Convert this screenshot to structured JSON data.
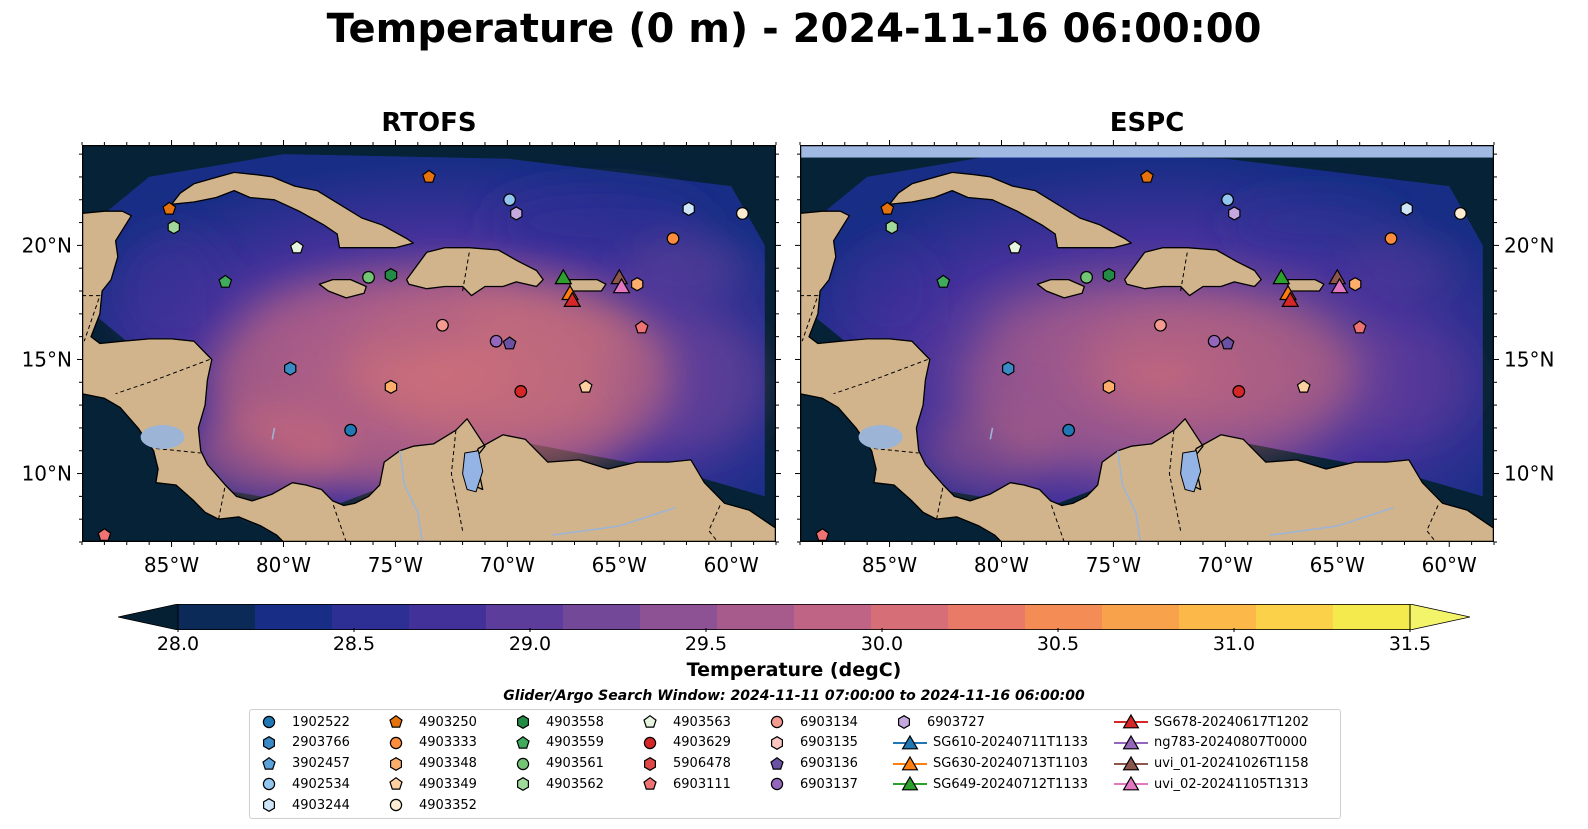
{
  "title": "Temperature (0 m) - 2024-11-16 06:00:00",
  "panels": [
    {
      "title": "RTOFS",
      "show_left_labels": true,
      "show_right_labels": false,
      "nodata_band": false
    },
    {
      "title": "ESPC",
      "show_left_labels": false,
      "show_right_labels": true,
      "nodata_band": true
    }
  ],
  "lat_labels": [
    "20°N",
    "15°N",
    "10°N"
  ],
  "lat_values": [
    20,
    15,
    10
  ],
  "lon_labels": [
    "85°W",
    "80°W",
    "75°W",
    "70°W",
    "65°W",
    "60°W"
  ],
  "lon_values": [
    -85,
    -80,
    -75,
    -70,
    -65,
    -60
  ],
  "extent": {
    "lon": [
      -89,
      -58
    ],
    "lat": [
      7,
      24.4
    ]
  },
  "colorbar": {
    "label": "Temperature (degC)",
    "ticks": [
      "28.0",
      "28.5",
      "29.0",
      "29.5",
      "30.0",
      "30.5",
      "31.0",
      "31.5"
    ],
    "min": 28.0,
    "max": 31.5,
    "colors": [
      "#0b2a57",
      "#182e86",
      "#2d2f94",
      "#43319a",
      "#5c3d9b",
      "#744898",
      "#8d5293",
      "#a65b8c",
      "#bf6484",
      "#d66e77",
      "#e97a67",
      "#f38d55",
      "#f8a24c",
      "#fcb94a",
      "#fbd14a",
      "#f4e94d"
    ],
    "under": "#062033",
    "over": "#f4f46a"
  },
  "colors": {
    "land": "#d2b48c",
    "ocean_deep": "#062236",
    "nodata": "#9fb9e3",
    "lake": "#94b4e6",
    "river": "#9cb5d6"
  },
  "legend_title": "Glider/Argo Search Window: 2024-11-11 07:00:00 to 2024-11-16 06:00:00",
  "legend": [
    {
      "label": "1902522",
      "marker": "circle",
      "color": "#1f77b4"
    },
    {
      "label": "2903766",
      "marker": "hexagon",
      "color": "#3a8ac6"
    },
    {
      "label": "3902457",
      "marker": "pentagon",
      "color": "#5aa2dc"
    },
    {
      "label": "4902534",
      "marker": "circle",
      "color": "#92c6ef"
    },
    {
      "label": "4903244",
      "marker": "hexagon",
      "color": "#cfe6f8"
    },
    {
      "label": "4903250",
      "marker": "pentagon",
      "color": "#e6720d"
    },
    {
      "label": "4903333",
      "marker": "circle",
      "color": "#fd8d3c"
    },
    {
      "label": "4903348",
      "marker": "hexagon",
      "color": "#fdae6b"
    },
    {
      "label": "4903349",
      "marker": "pentagon",
      "color": "#fdd0a2"
    },
    {
      "label": "4903352",
      "marker": "circle",
      "color": "#feecd2"
    },
    {
      "label": "4903558",
      "marker": "hexagon",
      "color": "#238b45"
    },
    {
      "label": "4903559",
      "marker": "pentagon",
      "color": "#41ab5d"
    },
    {
      "label": "4903561",
      "marker": "circle",
      "color": "#74c476"
    },
    {
      "label": "4903562",
      "marker": "hexagon",
      "color": "#a1d99b"
    },
    {
      "label": "4903563",
      "marker": "pentagon",
      "color": "#e5f5e0"
    },
    {
      "label": "4903629",
      "marker": "circle",
      "color": "#d62728"
    },
    {
      "label": "5906478",
      "marker": "hexagon",
      "color": "#e04848"
    },
    {
      "label": "6903111",
      "marker": "pentagon",
      "color": "#f07373"
    },
    {
      "label": "6903134",
      "marker": "circle",
      "color": "#f59a90"
    },
    {
      "label": "6903135",
      "marker": "hexagon",
      "color": "#fcc5c0"
    },
    {
      "label": "6903136",
      "marker": "pentagon",
      "color": "#6a51a3"
    },
    {
      "label": "6903137",
      "marker": "circle",
      "color": "#9467bd"
    },
    {
      "label": "6903727",
      "marker": "hexagon",
      "color": "#c5a8e0"
    },
    {
      "label": "SG610-20240711T1133",
      "marker": "triangle-line",
      "color": "#1f77b4"
    },
    {
      "label": "SG630-20240713T1103",
      "marker": "triangle-line",
      "color": "#ff7f0e"
    },
    {
      "label": "SG649-20240712T1133",
      "marker": "triangle-line",
      "color": "#2ca02c"
    },
    {
      "label": "SG678-20240617T1202",
      "marker": "triangle-line",
      "color": "#d62728"
    },
    {
      "label": "ng783-20240807T0000",
      "marker": "triangle-line",
      "color": "#9467bd"
    },
    {
      "label": "uvi_01-20241026T1158",
      "marker": "triangle-line",
      "color": "#8c564b"
    },
    {
      "label": "uvi_02-20241105T1313",
      "marker": "triangle-line",
      "color": "#e377c2"
    }
  ],
  "floats": [
    {
      "id": "1902522",
      "lon": -77.0,
      "lat": 11.9
    },
    {
      "id": "2903766",
      "lon": -79.7,
      "lat": 14.6
    },
    {
      "id": "4902534",
      "lon": -69.9,
      "lat": 22.0
    },
    {
      "id": "4903244",
      "lon": -61.9,
      "lat": 21.6
    },
    {
      "id": "4903250",
      "lon": -85.1,
      "lat": 21.6
    },
    {
      "id": "4903250",
      "lon": -73.5,
      "lat": 23.0
    },
    {
      "id": "4903333",
      "lon": -62.6,
      "lat": 20.3
    },
    {
      "id": "4903348",
      "lon": -64.2,
      "lat": 18.3
    },
    {
      "id": "4903349",
      "lon": -66.5,
      "lat": 13.8
    },
    {
      "id": "4903348",
      "lon": -75.2,
      "lat": 13.8
    },
    {
      "id": "4903352",
      "lon": -59.5,
      "lat": 21.4
    },
    {
      "id": "4903558",
      "lon": -75.2,
      "lat": 18.7
    },
    {
      "id": "4903559",
      "lon": -82.6,
      "lat": 18.4
    },
    {
      "id": "4903561",
      "lon": -76.2,
      "lat": 18.6
    },
    {
      "id": "4903562",
      "lon": -84.9,
      "lat": 20.8
    },
    {
      "id": "4903563",
      "lon": -79.4,
      "lat": 19.9
    },
    {
      "id": "4903629",
      "lon": -69.4,
      "lat": 13.6
    },
    {
      "id": "6903111",
      "lon": -64.0,
      "lat": 16.4
    },
    {
      "id": "6903111",
      "lon": -88.0,
      "lat": 7.3
    },
    {
      "id": "6903134",
      "lon": -72.9,
      "lat": 16.5
    },
    {
      "id": "6903136",
      "lon": -69.9,
      "lat": 15.7
    },
    {
      "id": "6903137",
      "lon": -70.5,
      "lat": 15.8
    },
    {
      "id": "6903727",
      "lon": -69.6,
      "lat": 21.4
    }
  ],
  "gliders": [
    {
      "id": "SG649-20240712T1133",
      "lon": -67.5,
      "lat": 18.6
    },
    {
      "id": "SG630-20240713T1103",
      "lon": -67.2,
      "lat": 17.9
    },
    {
      "id": "SG678-20240617T1202",
      "lon": -67.1,
      "lat": 17.6
    },
    {
      "id": "uvi_01-20241026T1158",
      "lon": -65.0,
      "lat": 18.6
    },
    {
      "id": "uvi_02-20241105T1313",
      "lon": -64.9,
      "lat": 18.2
    }
  ]
}
